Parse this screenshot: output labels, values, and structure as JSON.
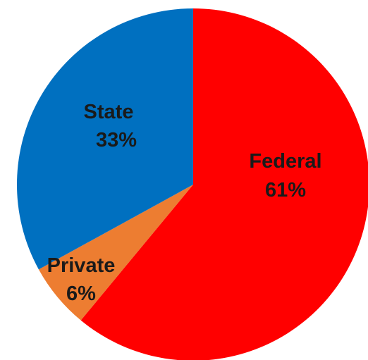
{
  "chart_data": {
    "type": "pie",
    "title": "",
    "slices": [
      {
        "label": "Federal",
        "value": 61,
        "value_label": "61%",
        "color": "#ff0000"
      },
      {
        "label": "Private",
        "value": 6,
        "value_label": "6%",
        "color": "#ed7d31"
      },
      {
        "label": "State",
        "value": 33,
        "value_label": "33%",
        "color": "#0070c0"
      }
    ],
    "start_angle_deg": 0,
    "direction": "clockwise",
    "legend": "none"
  }
}
